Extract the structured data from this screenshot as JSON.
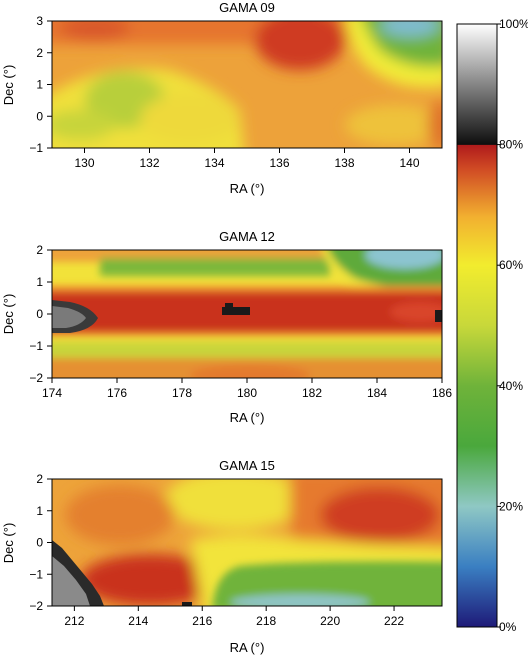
{
  "chart_data": [
    {
      "type": "heatmap",
      "title": "GAMA 09",
      "xlabel": "RA (°)",
      "ylabel": "Dec (°)",
      "xlim": [
        129,
        141
      ],
      "ylim": [
        -1,
        3
      ],
      "x_ticks": [
        "130",
        "132",
        "134",
        "136",
        "138",
        "140"
      ],
      "y_ticks": [
        "−1",
        "0",
        "1",
        "2",
        "3"
      ],
      "x_tick_values": [
        130,
        132,
        134,
        136,
        138,
        140
      ],
      "y_tick_values": [
        -1,
        0,
        1,
        2,
        3
      ]
    },
    {
      "type": "heatmap",
      "title": "GAMA 12",
      "xlabel": "RA (°)",
      "ylabel": "Dec (°)",
      "xlim": [
        174,
        186
      ],
      "ylim": [
        -2,
        2
      ],
      "x_ticks": [
        "174",
        "176",
        "178",
        "180",
        "182",
        "184",
        "186"
      ],
      "y_ticks": [
        "−2",
        "−1",
        "0",
        "1",
        "2"
      ],
      "x_tick_values": [
        174,
        176,
        178,
        180,
        182,
        184,
        186
      ],
      "y_tick_values": [
        -2,
        -1,
        0,
        1,
        2
      ]
    },
    {
      "type": "heatmap",
      "title": "GAMA 15",
      "xlabel": "RA (°)",
      "ylabel": "Dec (°)",
      "xlim": [
        211.3,
        223.5
      ],
      "ylim": [
        -2,
        2
      ],
      "x_ticks": [
        "212",
        "214",
        "216",
        "218",
        "220",
        "222"
      ],
      "y_ticks": [
        "−2",
        "−1",
        "0",
        "1",
        "2"
      ],
      "x_tick_values": [
        212,
        214,
        216,
        218,
        220,
        222
      ],
      "y_tick_values": [
        -2,
        -1,
        0,
        1,
        2
      ]
    }
  ],
  "colorbar": {
    "labels": [
      "100%",
      "80%",
      "60%",
      "40%",
      "20%",
      "0%"
    ],
    "values": [
      100,
      80,
      60,
      40,
      20,
      0
    ],
    "colors_low_to_high": [
      "#1e1a78",
      "#3a7fc2",
      "#8fc8c4",
      "#4aa83c",
      "#a8c83a",
      "#f2ec2e",
      "#f2a030",
      "#c83424",
      "#b01c1c",
      "#1a1a1a",
      "#7a7a7a",
      "#ffffff"
    ]
  },
  "colors": {
    "dark": "#1a1a1a",
    "red": "#c62d1f",
    "orange": "#e58a2f",
    "yellow": "#efe13a",
    "green": "#6fb33a",
    "blue": "#74b6d6"
  }
}
